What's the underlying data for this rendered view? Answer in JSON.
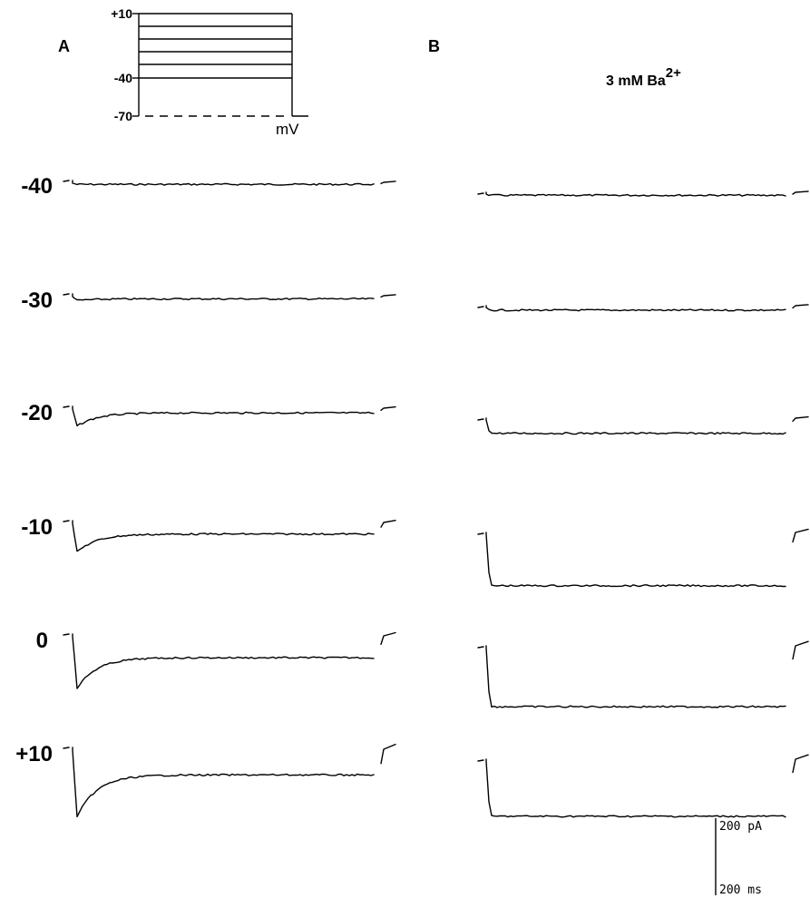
{
  "panels": {
    "a_label": "A",
    "b_label": "B"
  },
  "protocol": {
    "holding_label": "-70",
    "step_label_top": "+10",
    "step_label_mid": "-40",
    "units": "mV"
  },
  "condition_b": {
    "text": "3 mM Ba",
    "superscript": "2+"
  },
  "rows": [
    {
      "label": "-40",
      "a_peak": 0.3,
      "a_sustained": 0.3,
      "a_tail": 0.1,
      "b_sustained": 0.3,
      "b_tail": 0.0
    },
    {
      "label": "-30",
      "a_peak": 1.0,
      "a_sustained": 0.6,
      "a_tail": 0.1,
      "b_sustained": 0.7,
      "b_tail": 0.1
    },
    {
      "label": "-20",
      "a_peak": 4.5,
      "a_sustained": 1.0,
      "a_tail": 0.3,
      "b_sustained": 3.5,
      "b_tail": 0.3
    },
    {
      "label": "-10",
      "a_peak": 7.5,
      "a_sustained": 2.8,
      "a_tail": 1.0,
      "b_sustained": 13.5,
      "b_tail": 2.0
    },
    {
      "label": "0",
      "a_peak": 13.5,
      "a_sustained": 5.5,
      "a_tail": 2.0,
      "b_sustained": 15.5,
      "b_tail": 3.0
    },
    {
      "label": "+10",
      "a_peak": 17.5,
      "a_sustained": 6.5,
      "a_tail": 3.5,
      "b_sustained": 14.5,
      "b_tail": 3.0
    }
  ],
  "scale_bar": {
    "current": "200 pA",
    "time": "200 ms"
  }
}
